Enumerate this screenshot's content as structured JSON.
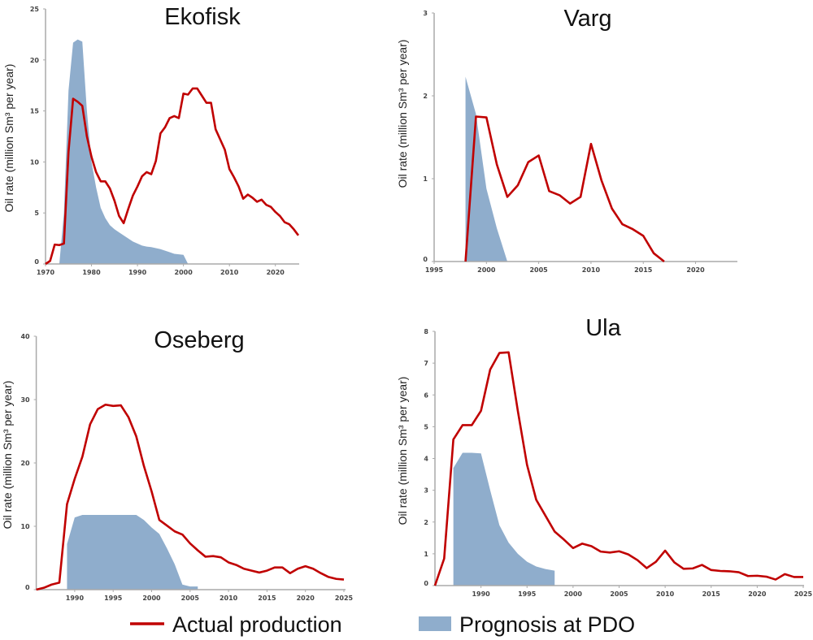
{
  "colors": {
    "actual": "#c00000",
    "prognosis": "#8fadcc",
    "axis": "#aaaaaa"
  },
  "legend": {
    "actual_label": "Actual production",
    "prognosis_label": "Prognosis at PDO"
  },
  "chart_data": [
    {
      "type": "line+area",
      "title": "Ekofisk",
      "ylabel": "Oil rate (million Sm³ per year)",
      "xlim": [
        1970,
        2025
      ],
      "ylim": [
        0,
        25
      ],
      "xticks": [
        1970,
        1980,
        1990,
        2000,
        2010,
        2020
      ],
      "yticks": [
        0,
        5,
        10,
        15,
        20,
        25
      ],
      "series": [
        {
          "name": "Actual production",
          "kind": "line",
          "x": [
            1970,
            1971,
            1972,
            1973,
            1974,
            1975,
            1976,
            1977,
            1978,
            1979,
            1980,
            1981,
            1982,
            1983,
            1984,
            1985,
            1986,
            1987,
            1988,
            1989,
            1990,
            1991,
            1992,
            1993,
            1994,
            1995,
            1996,
            1997,
            1998,
            1999,
            2000,
            2001,
            2002,
            2003,
            2004,
            2005,
            2006,
            2007,
            2008,
            2009,
            2010,
            2011,
            2012,
            2013,
            2014,
            2015,
            2016,
            2017,
            2018,
            2019,
            2020,
            2021,
            2022,
            2023,
            2024,
            2025
          ],
          "y": [
            0,
            0.3,
            1.9,
            1.85,
            2.0,
            11,
            16.2,
            15.9,
            15.5,
            12.5,
            10.5,
            9.0,
            8.1,
            8.1,
            7.4,
            6.2,
            4.7,
            4.0,
            5.4,
            6.7,
            7.6,
            8.6,
            9.0,
            8.8,
            10.1,
            12.8,
            13.4,
            14.3,
            14.5,
            14.3,
            16.7,
            16.6,
            17.2,
            17.2,
            16.5,
            15.8,
            15.8,
            13.2,
            12.2,
            11.2,
            9.3,
            8.5,
            7.6,
            6.4,
            6.8,
            6.5,
            6.1,
            6.3,
            5.8,
            5.6,
            5.1,
            4.7,
            4.1,
            3.9,
            3.4,
            2.8
          ]
        },
        {
          "name": "Prognosis at PDO",
          "kind": "area",
          "x": [
            1973,
            1974,
            1975,
            1976,
            1977,
            1978,
            1979,
            1980,
            1981,
            1982,
            1983,
            1984,
            1985,
            1986,
            1987,
            1988,
            1989,
            1990,
            1991,
            1992,
            1993,
            1994,
            1995,
            1996,
            1997,
            1998,
            1999,
            2000,
            2001
          ],
          "y": [
            0,
            5,
            17,
            21.7,
            22,
            21.8,
            15,
            10,
            7.5,
            5.5,
            4.5,
            3.8,
            3.4,
            3.1,
            2.8,
            2.5,
            2.2,
            2.0,
            1.8,
            1.7,
            1.65,
            1.55,
            1.45,
            1.3,
            1.15,
            1.0,
            0.95,
            0.9,
            0
          ]
        }
      ]
    },
    {
      "type": "line+area",
      "title": "Varg",
      "ylabel": "Oil rate (million Sm³ per year)",
      "xlim": [
        1995,
        2024
      ],
      "ylim": [
        0,
        3
      ],
      "xticks": [
        1995,
        2000,
        2005,
        2010,
        2015,
        2020
      ],
      "yticks": [
        0,
        1,
        2,
        3
      ],
      "series": [
        {
          "name": "Actual production",
          "kind": "line",
          "x": [
            1998,
            1999,
            2000,
            2001,
            2002,
            2003,
            2004,
            2005,
            2006,
            2007,
            2008,
            2009,
            2010,
            2011,
            2012,
            2013,
            2014,
            2015,
            2016,
            2017
          ],
          "y": [
            0,
            1.75,
            1.74,
            1.17,
            0.78,
            0.92,
            1.2,
            1.28,
            0.85,
            0.8,
            0.7,
            0.78,
            1.42,
            0.98,
            0.64,
            0.45,
            0.39,
            0.31,
            0.1,
            0
          ]
        },
        {
          "name": "Prognosis at PDO",
          "kind": "area",
          "x": [
            1998,
            1999,
            2000,
            2001,
            2002
          ],
          "y": [
            2.23,
            1.78,
            0.88,
            0.4,
            0
          ]
        }
      ]
    },
    {
      "type": "line+area",
      "title": "Oseberg",
      "ylabel": "Oil rate (million Sm³ per year)",
      "xlim": [
        1985,
        2025
      ],
      "ylim": [
        0,
        40
      ],
      "xticks": [
        1990,
        1995,
        2000,
        2005,
        2010,
        2015,
        2020,
        2025
      ],
      "yticks": [
        0,
        10,
        20,
        30,
        40
      ],
      "series": [
        {
          "name": "Actual production",
          "kind": "line",
          "x": [
            1985,
            1986,
            1987,
            1988,
            1989,
            1990,
            1991,
            1992,
            1993,
            1994,
            1995,
            1996,
            1997,
            1998,
            1999,
            2000,
            2001,
            2002,
            2003,
            2004,
            2005,
            2006,
            2007,
            2008,
            2009,
            2010,
            2011,
            2012,
            2013,
            2014,
            2015,
            2016,
            2017,
            2018,
            2019,
            2020,
            2021,
            2022,
            2023,
            2024,
            2025
          ],
          "y": [
            0,
            0.3,
            0.8,
            1.1,
            13.5,
            17.5,
            21,
            26.1,
            28.5,
            29.2,
            29.0,
            29.1,
            27.2,
            24.2,
            19.5,
            15.5,
            11.0,
            10.1,
            9.2,
            8.7,
            7.3,
            6.2,
            5.2,
            5.3,
            5.1,
            4.3,
            3.9,
            3.3,
            3.0,
            2.7,
            3.0,
            3.5,
            3.5,
            2.6,
            3.3,
            3.7,
            3.3,
            2.6,
            2.0,
            1.7,
            1.6
          ]
        },
        {
          "name": "Prognosis at PDO",
          "kind": "area",
          "x": [
            1989,
            1990,
            1991,
            1992,
            1993,
            1994,
            1995,
            1996,
            1997,
            1998,
            1999,
            2000,
            2001,
            2002,
            2003,
            2004,
            2005,
            2006
          ],
          "y": [
            7.2,
            11.4,
            11.8,
            11.8,
            11.8,
            11.8,
            11.8,
            11.8,
            11.8,
            11.8,
            11.0,
            9.8,
            8.8,
            6.5,
            4.0,
            0.8,
            0.5,
            0.5
          ]
        }
      ]
    },
    {
      "type": "line+area",
      "title": "Ula",
      "ylabel": "Oil rate (million Sm³ per year)",
      "xlim": [
        1985,
        2025
      ],
      "ylim": [
        0,
        8
      ],
      "xticks": [
        1990,
        1995,
        2000,
        2005,
        2010,
        2015,
        2020,
        2025
      ],
      "yticks": [
        0,
        1,
        2,
        3,
        4,
        5,
        6,
        7,
        8
      ],
      "series": [
        {
          "name": "Actual production",
          "kind": "line",
          "x": [
            1985,
            1986,
            1987,
            1988,
            1989,
            1990,
            1991,
            1992,
            1993,
            1994,
            1995,
            1996,
            1997,
            1998,
            1999,
            2000,
            2001,
            2002,
            2003,
            2004,
            2005,
            2006,
            2007,
            2008,
            2009,
            2010,
            2011,
            2012,
            2013,
            2014,
            2015,
            2016,
            2017,
            2018,
            2019,
            2020,
            2021,
            2022,
            2023,
            2024,
            2025
          ],
          "y": [
            0,
            0.85,
            4.6,
            5.05,
            5.05,
            5.5,
            6.8,
            7.32,
            7.34,
            5.5,
            3.8,
            2.7,
            2.2,
            1.7,
            1.45,
            1.18,
            1.32,
            1.24,
            1.07,
            1.04,
            1.08,
            0.98,
            0.8,
            0.55,
            0.75,
            1.1,
            0.73,
            0.53,
            0.54,
            0.65,
            0.49,
            0.46,
            0.45,
            0.42,
            0.3,
            0.31,
            0.28,
            0.19,
            0.36,
            0.27,
            0.27
          ]
        },
        {
          "name": "Prognosis at PDO",
          "kind": "area",
          "x": [
            1987,
            1988,
            1989,
            1990,
            1991,
            1992,
            1993,
            1994,
            1995,
            1996,
            1997,
            1998
          ],
          "y": [
            3.7,
            4.18,
            4.18,
            4.16,
            3.0,
            1.9,
            1.35,
            1.0,
            0.75,
            0.6,
            0.52,
            0.47
          ]
        }
      ]
    }
  ]
}
